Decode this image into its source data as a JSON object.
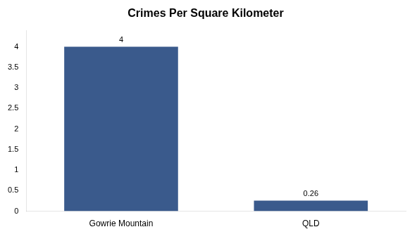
{
  "chart_data": {
    "type": "bar",
    "title": "Crimes Per Square Kilometer",
    "categories": [
      "Gowrie Mountain",
      "QLD"
    ],
    "values": [
      4,
      0.26
    ],
    "color": "#3a5a8c",
    "ylim": [
      0,
      4.4
    ],
    "yticks": [
      0,
      0.5,
      1,
      1.5,
      2,
      2.5,
      3,
      3.5,
      4
    ],
    "grid": false,
    "data_labels": true
  }
}
